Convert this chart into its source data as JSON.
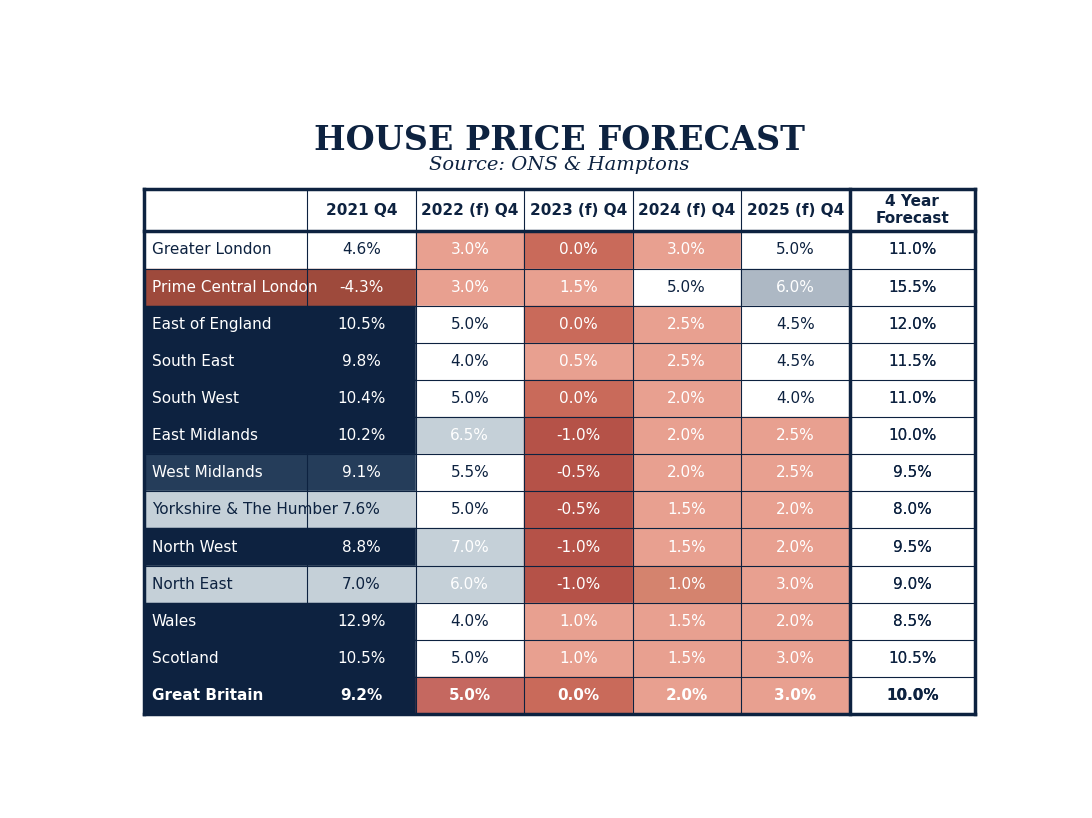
{
  "title": "HOUSE PRICE FORECAST",
  "subtitle": "Source: ONS & Hamptons",
  "columns": [
    "",
    "2021 Q4",
    "2022 (f) Q4",
    "2023 (f) Q4",
    "2024 (f) Q4",
    "2025 (f) Q4",
    "4 Year\nForecast"
  ],
  "rows": [
    "Greater London",
    "Prime Central London",
    "East of England",
    "South East",
    "South West",
    "East Midlands",
    "West Midlands",
    "Yorkshire & The Humber",
    "North West",
    "North East",
    "Wales",
    "Scotland",
    "Great Britain"
  ],
  "data": [
    [
      "4.6%",
      "3.0%",
      "0.0%",
      "3.0%",
      "5.0%",
      "11.0%"
    ],
    [
      "-4.3%",
      "3.0%",
      "1.5%",
      "5.0%",
      "6.0%",
      "15.5%"
    ],
    [
      "10.5%",
      "5.0%",
      "0.0%",
      "2.5%",
      "4.5%",
      "12.0%"
    ],
    [
      "9.8%",
      "4.0%",
      "0.5%",
      "2.5%",
      "4.5%",
      "11.5%"
    ],
    [
      "10.4%",
      "5.0%",
      "0.0%",
      "2.0%",
      "4.0%",
      "11.0%"
    ],
    [
      "10.2%",
      "6.5%",
      "-1.0%",
      "2.0%",
      "2.5%",
      "10.0%"
    ],
    [
      "9.1%",
      "5.5%",
      "-0.5%",
      "2.0%",
      "2.5%",
      "9.5%"
    ],
    [
      "7.6%",
      "5.0%",
      "-0.5%",
      "1.5%",
      "2.0%",
      "8.0%"
    ],
    [
      "8.8%",
      "7.0%",
      "-1.0%",
      "1.5%",
      "2.0%",
      "9.5%"
    ],
    [
      "7.0%",
      "6.0%",
      "-1.0%",
      "1.0%",
      "3.0%",
      "9.0%"
    ],
    [
      "12.9%",
      "4.0%",
      "1.0%",
      "1.5%",
      "2.0%",
      "8.5%"
    ],
    [
      "10.5%",
      "5.0%",
      "1.0%",
      "1.5%",
      "3.0%",
      "10.5%"
    ],
    [
      "9.2%",
      "5.0%",
      "0.0%",
      "2.0%",
      "3.0%",
      "10.0%"
    ]
  ],
  "col0_bg": [
    "white",
    "red_dark",
    "navy",
    "navy",
    "navy",
    "navy",
    "navy_mid",
    "blue_gray_light",
    "navy",
    "blue_gray_light",
    "navy",
    "navy",
    "navy"
  ],
  "col0_text": [
    "navy",
    "white",
    "white",
    "white",
    "white",
    "white",
    "white",
    "navy",
    "white",
    "navy",
    "white",
    "white",
    "white"
  ],
  "cell_colors": [
    [
      "salmon_light",
      "red_med",
      "salmon_light",
      "white",
      "white"
    ],
    [
      "salmon_light",
      "salmon_light",
      "white",
      "blue_gray",
      "white"
    ],
    [
      "white",
      "red_med",
      "salmon_light",
      "white",
      "white"
    ],
    [
      "white",
      "salmon_light",
      "salmon_light",
      "white",
      "white"
    ],
    [
      "white",
      "red_med",
      "salmon_light",
      "white",
      "white"
    ],
    [
      "blue_gray_light",
      "red_dark2",
      "salmon_light",
      "salmon_light",
      "white"
    ],
    [
      "white",
      "red_dark2",
      "salmon_light",
      "salmon_light",
      "white"
    ],
    [
      "white",
      "red_dark2",
      "salmon_light",
      "salmon_light",
      "white"
    ],
    [
      "blue_gray_light",
      "red_dark2",
      "salmon_light",
      "salmon_light",
      "white"
    ],
    [
      "blue_gray_light",
      "red_dark2",
      "salmon_med",
      "salmon_light",
      "white"
    ],
    [
      "white",
      "salmon_light",
      "salmon_light",
      "salmon_light",
      "white"
    ],
    [
      "white",
      "salmon_light",
      "salmon_light",
      "salmon_light",
      "white"
    ],
    [
      "red_med2",
      "red_med",
      "salmon_light",
      "salmon_light",
      "white"
    ]
  ],
  "text_colors": [
    [
      "white",
      "white",
      "white",
      "navy",
      "navy"
    ],
    [
      "white",
      "white",
      "navy",
      "white",
      "navy"
    ],
    [
      "navy",
      "white",
      "white",
      "navy",
      "navy"
    ],
    [
      "navy",
      "white",
      "white",
      "navy",
      "navy"
    ],
    [
      "navy",
      "white",
      "white",
      "navy",
      "navy"
    ],
    [
      "white",
      "white",
      "white",
      "white",
      "navy"
    ],
    [
      "navy",
      "white",
      "white",
      "white",
      "navy"
    ],
    [
      "navy",
      "white",
      "white",
      "white",
      "navy"
    ],
    [
      "white",
      "white",
      "white",
      "white",
      "navy"
    ],
    [
      "white",
      "white",
      "white",
      "white",
      "navy"
    ],
    [
      "navy",
      "white",
      "white",
      "white",
      "navy"
    ],
    [
      "navy",
      "white",
      "white",
      "white",
      "navy"
    ],
    [
      "white",
      "white",
      "white",
      "white",
      "navy"
    ]
  ],
  "colors": {
    "navy": "#0d2240",
    "navy_mid": "#253d5a",
    "white": "#ffffff",
    "salmon_light": "#e8a090",
    "salmon_med": "#d4836e",
    "red_med": "#c96a5a",
    "red_med2": "#c56860",
    "red_dark": "#9e4a3c",
    "red_dark2": "#b55248",
    "blue_gray": "#adb8c4",
    "blue_gray_light": "#c5d0d8",
    "bg": "#ffffff",
    "line": "#0d2240"
  }
}
